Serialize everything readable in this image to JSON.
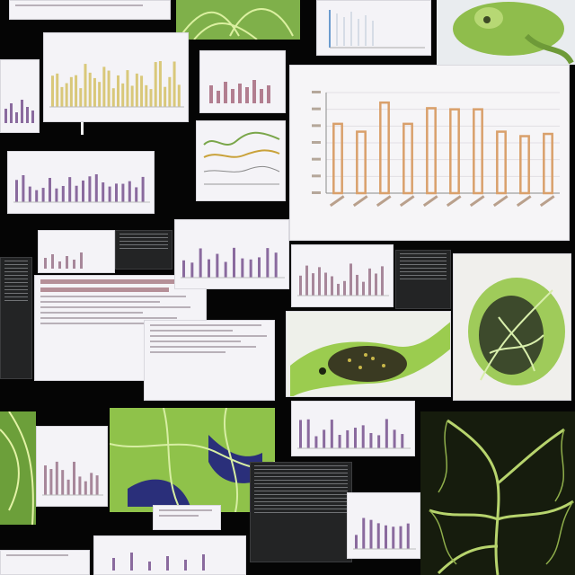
{
  "collage": {
    "description_hidden": "",
    "main_chart": {
      "title": "",
      "footer": "",
      "bar_color": "#d9a06b"
    },
    "chart_data": [
      {
        "type": "bar",
        "title": "",
        "categories": [
          "",
          "",
          "",
          "",
          "",
          "",
          "",
          "",
          "",
          ""
        ],
        "values": [
          6.2,
          5.5,
          8.1,
          6.2,
          7.6,
          7.5,
          7.5,
          5.5,
          5.1,
          5.3
        ],
        "ylim": [
          0,
          9
        ],
        "grid": true
      }
    ],
    "palette": {
      "background": "#050505",
      "paper": "#f4f3f7",
      "bar_purple": "#8a6a9e",
      "bar_mauve": "#a7879a",
      "bar_gold": "#d9c87a",
      "leaf_green": "#a9cf63",
      "deep_blue": "#2a2f7a"
    }
  }
}
